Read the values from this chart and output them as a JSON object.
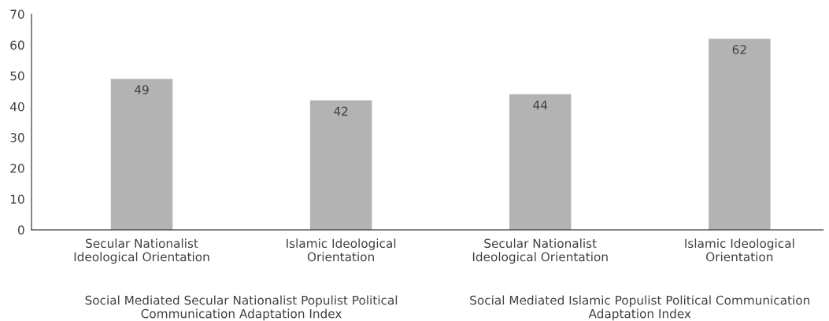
{
  "chart_data": {
    "type": "bar",
    "categories": [
      "Secular Nationalist\nIdeological Orientation",
      "Islamic Ideological\nOrientation",
      "Secular Nationalist\nIdeological Orientation",
      "Islamic Ideological\nOrientation"
    ],
    "values": [
      49,
      42,
      44,
      62
    ],
    "color": "#b3b3b3",
    "ylim": [
      0,
      70
    ],
    "yticks": [
      0,
      10,
      20,
      30,
      40,
      50,
      60,
      70
    ],
    "grid": false,
    "data_labels": true,
    "annotations": [
      "Social Mediated Secular Nationalist Populist Political\nCommunication Adaptation Index",
      "Social Mediated Islamic Populist Political Communication\nAdaptation Index"
    ]
  }
}
